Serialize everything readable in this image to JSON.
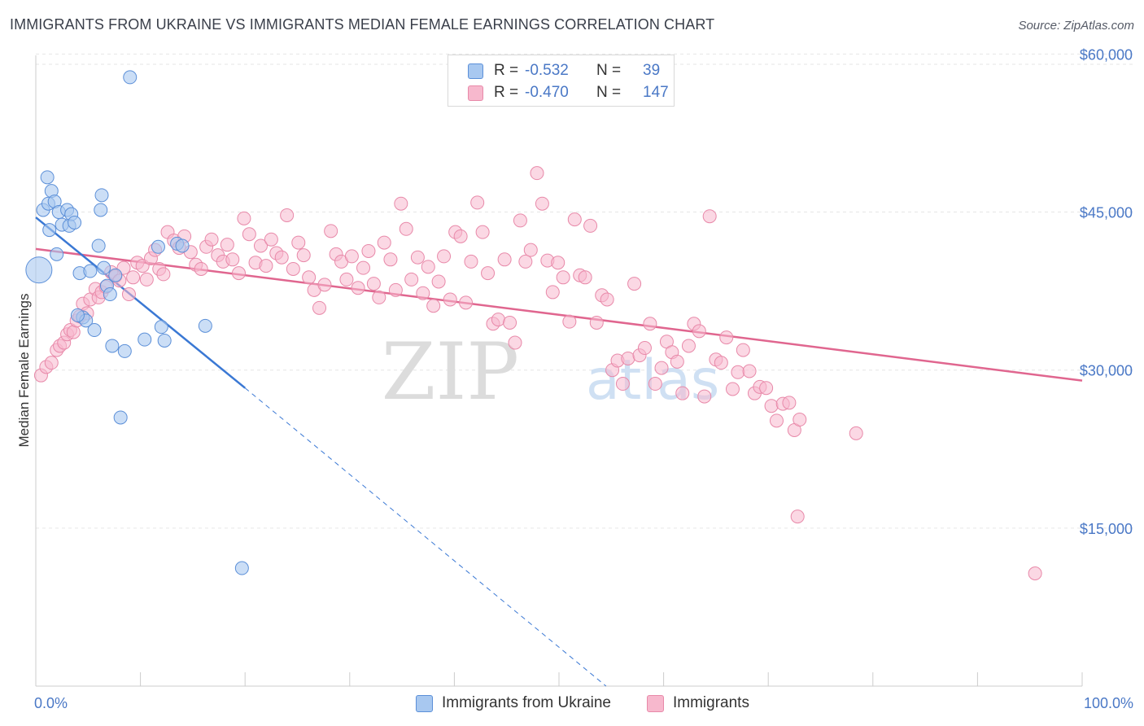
{
  "title": "IMMIGRANTS FROM UKRAINE VS IMMIGRANTS MEDIAN FEMALE EARNINGS CORRELATION CHART",
  "source": "Source: ZipAtlas.com",
  "legend": {
    "r_label": "R =",
    "n_label": "N =",
    "rows": [
      {
        "r": "-0.532",
        "n": "39"
      },
      {
        "r": "-0.470",
        "n": "147"
      }
    ]
  },
  "colors": {
    "ukraine_fill": "#a8c8f0",
    "ukraine_stroke": "#5b8fd8",
    "ukraine_line": "#3a78d4",
    "immigrants_fill": "#f7b8cd",
    "immigrants_stroke": "#e889a9",
    "immigrants_line": "#e0668f",
    "tick_label": "#4a78c6"
  },
  "chart_data": {
    "type": "scatter",
    "title": "IMMIGRANTS FROM UKRAINE VS IMMIGRANTS MEDIAN FEMALE EARNINGS CORRELATION CHART",
    "xlabel": "",
    "ylabel": "Median Female Earnings",
    "x_tick_labels": [
      "0.0%",
      "100.0%"
    ],
    "y_tick_labels": [
      "$15,000",
      "$30,000",
      "$45,000",
      "$60,000"
    ],
    "y_ticks": [
      15000,
      30000,
      45000,
      60000
    ],
    "xlim": [
      0,
      100
    ],
    "ylim": [
      0,
      61500
    ],
    "grid": true,
    "legend_position": "top-center",
    "watermark": "ZIPatlas",
    "series": [
      {
        "name": "Immigrants from Ukraine",
        "r": -0.532,
        "n": 39,
        "trend": {
          "x": [
            0,
            20
          ],
          "y": [
            44500,
            28300
          ]
        },
        "trend_dashed": {
          "x": [
            20,
            54.5
          ],
          "y": [
            28300,
            0
          ]
        },
        "points": [
          [
            0.3,
            39500,
            16
          ],
          [
            0.7,
            45200,
            8
          ],
          [
            1.1,
            48300,
            8
          ],
          [
            1.2,
            45800,
            8
          ],
          [
            1.3,
            43300,
            8
          ],
          [
            1.5,
            47000,
            8
          ],
          [
            1.8,
            46000,
            8
          ],
          [
            2.0,
            41000,
            8
          ],
          [
            2.2,
            45000,
            8
          ],
          [
            2.5,
            43800,
            8
          ],
          [
            3.0,
            45200,
            8
          ],
          [
            3.2,
            43700,
            8
          ],
          [
            3.4,
            44800,
            8
          ],
          [
            3.7,
            44000,
            8
          ],
          [
            4.2,
            39200,
            8
          ],
          [
            4.5,
            35000,
            8
          ],
          [
            4.8,
            34700,
            8
          ],
          [
            5.2,
            39400,
            8
          ],
          [
            5.6,
            33800,
            8
          ],
          [
            6.0,
            41800,
            8
          ],
          [
            6.2,
            45200,
            8
          ],
          [
            6.3,
            46600,
            8
          ],
          [
            6.5,
            39700,
            8
          ],
          [
            6.8,
            38000,
            8
          ],
          [
            7.1,
            37200,
            8
          ],
          [
            7.3,
            32300,
            8
          ],
          [
            7.6,
            39000,
            8
          ],
          [
            8.1,
            25500,
            8
          ],
          [
            8.5,
            31800,
            8
          ],
          [
            9.0,
            57800,
            8
          ],
          [
            10.4,
            32900,
            8
          ],
          [
            11.7,
            41700,
            8
          ],
          [
            12.0,
            34100,
            8
          ],
          [
            12.3,
            32800,
            8
          ],
          [
            13.5,
            42000,
            8
          ],
          [
            14.0,
            41800,
            8
          ],
          [
            16.2,
            34200,
            8
          ],
          [
            19.7,
            11200,
            8
          ],
          [
            4.0,
            35200,
            8
          ]
        ]
      },
      {
        "name": "Immigrants",
        "r": -0.47,
        "n": 147,
        "trend": {
          "x": [
            0,
            100
          ],
          "y": [
            41500,
            29000
          ]
        },
        "points": [
          [
            0.5,
            29500
          ],
          [
            1.0,
            30300
          ],
          [
            1.5,
            30700
          ],
          [
            2.0,
            31900
          ],
          [
            2.3,
            32300
          ],
          [
            2.7,
            32600
          ],
          [
            3.0,
            33400
          ],
          [
            3.3,
            33800
          ],
          [
            3.6,
            33600
          ],
          [
            3.9,
            34700
          ],
          [
            4.2,
            35100
          ],
          [
            4.5,
            36300
          ],
          [
            4.9,
            35400
          ],
          [
            5.2,
            36700
          ],
          [
            5.7,
            37700
          ],
          [
            6.0,
            36900
          ],
          [
            6.3,
            37400
          ],
          [
            6.7,
            37900
          ],
          [
            7.2,
            39300
          ],
          [
            7.6,
            38900
          ],
          [
            8.0,
            38500
          ],
          [
            8.4,
            39700
          ],
          [
            8.9,
            37200
          ],
          [
            9.3,
            38800
          ],
          [
            9.7,
            40200
          ],
          [
            10.2,
            39900
          ],
          [
            10.6,
            38600
          ],
          [
            11.0,
            40600
          ],
          [
            11.4,
            41400
          ],
          [
            11.8,
            39600
          ],
          [
            12.2,
            39100
          ],
          [
            12.6,
            43100
          ],
          [
            13.2,
            42300
          ],
          [
            13.7,
            41600
          ],
          [
            14.2,
            42700
          ],
          [
            14.8,
            41200
          ],
          [
            15.3,
            40000
          ],
          [
            15.8,
            39600
          ],
          [
            16.3,
            41700
          ],
          [
            16.8,
            42400
          ],
          [
            17.4,
            40900
          ],
          [
            17.9,
            40300
          ],
          [
            18.3,
            41900
          ],
          [
            18.8,
            40500
          ],
          [
            19.4,
            39200
          ],
          [
            19.9,
            44400
          ],
          [
            20.4,
            42900
          ],
          [
            21.0,
            40200
          ],
          [
            21.5,
            41800
          ],
          [
            22.0,
            39900
          ],
          [
            22.5,
            42400
          ],
          [
            23.0,
            41100
          ],
          [
            23.5,
            40700
          ],
          [
            24.0,
            44700
          ],
          [
            24.6,
            39600
          ],
          [
            25.1,
            42100
          ],
          [
            25.6,
            40900
          ],
          [
            26.1,
            38800
          ],
          [
            26.6,
            37600
          ],
          [
            27.1,
            35900
          ],
          [
            27.6,
            38100
          ],
          [
            28.2,
            43200
          ],
          [
            28.7,
            41000
          ],
          [
            29.2,
            40300
          ],
          [
            29.7,
            38600
          ],
          [
            30.2,
            40800
          ],
          [
            30.8,
            37800
          ],
          [
            31.3,
            39700
          ],
          [
            31.8,
            41300
          ],
          [
            32.3,
            38200
          ],
          [
            32.8,
            36900
          ],
          [
            33.3,
            42100
          ],
          [
            33.9,
            40500
          ],
          [
            34.4,
            37600
          ],
          [
            34.9,
            45800
          ],
          [
            35.4,
            43400
          ],
          [
            35.9,
            38600
          ],
          [
            36.5,
            40700
          ],
          [
            37.0,
            37300
          ],
          [
            37.5,
            39800
          ],
          [
            38.0,
            36100
          ],
          [
            38.5,
            38400
          ],
          [
            39.0,
            40800
          ],
          [
            39.6,
            36700
          ],
          [
            40.1,
            43100
          ],
          [
            40.6,
            42700
          ],
          [
            41.1,
            36400
          ],
          [
            41.6,
            40300
          ],
          [
            42.2,
            45900
          ],
          [
            42.7,
            43100
          ],
          [
            43.2,
            39200
          ],
          [
            43.7,
            34400
          ],
          [
            44.2,
            34800
          ],
          [
            44.8,
            40500
          ],
          [
            45.3,
            34500
          ],
          [
            45.8,
            32600
          ],
          [
            46.3,
            44200
          ],
          [
            46.8,
            40300
          ],
          [
            47.3,
            41400
          ],
          [
            47.9,
            48700
          ],
          [
            48.4,
            45800
          ],
          [
            48.9,
            40400
          ],
          [
            49.4,
            37400
          ],
          [
            49.9,
            40200
          ],
          [
            50.4,
            38800
          ],
          [
            51.0,
            34600
          ],
          [
            51.5,
            44300
          ],
          [
            52.0,
            39000
          ],
          [
            52.5,
            38800
          ],
          [
            53.0,
            43700
          ],
          [
            53.6,
            34500
          ],
          [
            54.1,
            37100
          ],
          [
            54.6,
            36700
          ],
          [
            55.1,
            30000
          ],
          [
            55.6,
            30900
          ],
          [
            56.1,
            28700
          ],
          [
            56.6,
            31100
          ],
          [
            57.2,
            38200
          ],
          [
            57.7,
            31400
          ],
          [
            58.2,
            32100
          ],
          [
            58.7,
            34400
          ],
          [
            59.2,
            28700
          ],
          [
            59.8,
            30200
          ],
          [
            60.3,
            32700
          ],
          [
            60.8,
            31700
          ],
          [
            61.3,
            30800
          ],
          [
            61.8,
            27800
          ],
          [
            62.4,
            32300
          ],
          [
            62.9,
            34400
          ],
          [
            63.4,
            33700
          ],
          [
            63.9,
            27500
          ],
          [
            64.4,
            44600
          ],
          [
            65.0,
            31000
          ],
          [
            65.5,
            30700
          ],
          [
            66.0,
            33100
          ],
          [
            66.6,
            28200
          ],
          [
            67.1,
            29800
          ],
          [
            67.6,
            31900
          ],
          [
            68.2,
            29900
          ],
          [
            68.7,
            27800
          ],
          [
            69.2,
            28400
          ],
          [
            69.8,
            28300
          ],
          [
            70.3,
            26600
          ],
          [
            70.8,
            25200
          ],
          [
            71.4,
            26800
          ],
          [
            72.0,
            26900
          ],
          [
            72.5,
            24300
          ],
          [
            73.0,
            25300
          ],
          [
            78.4,
            24000
          ],
          [
            72.8,
            16100
          ],
          [
            95.5,
            10700
          ]
        ]
      }
    ]
  }
}
